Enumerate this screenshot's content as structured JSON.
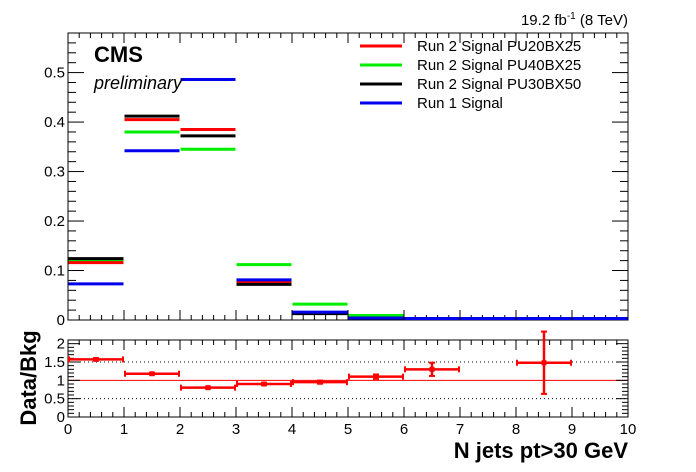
{
  "header": {
    "cms_label": "CMS",
    "prelim_label": "preliminary",
    "lumi_value": "19.2 fb",
    "lumi_exp": "-1",
    "lumi_energy": " (8 TeV)"
  },
  "chart_data": [
    {
      "type": "step-histogram",
      "title": "",
      "xlabel": "N jets pt>30 GeV",
      "ylabel": "",
      "xlim": [
        0,
        10
      ],
      "ylim": [
        0,
        0.58
      ],
      "bin_edges": [
        0,
        1,
        2,
        3,
        4,
        5,
        6,
        7,
        8,
        9,
        10
      ],
      "x_ticks": [
        0,
        1,
        2,
        3,
        4,
        5,
        6,
        7,
        8,
        9,
        10
      ],
      "y_ticks": [
        0,
        0.1,
        0.2,
        0.3,
        0.4,
        0.5
      ],
      "y_tick_labels": [
        "0",
        "0.1",
        "0.2",
        "0.3",
        "0.4",
        "0.5"
      ],
      "legend_position": "top-right",
      "series": [
        {
          "name": "Run 2 Signal PU20BX25",
          "color": "#ff0000",
          "values": [
            0.116,
            0.405,
            0.385,
            0.076,
            0.014,
            0.004,
            0.001,
            0.0,
            0.0,
            0.0
          ]
        },
        {
          "name": "Run 2 Signal PU40BX25",
          "color": "#00ee00",
          "values": [
            0.12,
            0.38,
            0.345,
            0.112,
            0.032,
            0.009,
            0.001,
            0.0,
            0.0,
            0.0
          ]
        },
        {
          "name": "Run 2 Signal PU30BX50",
          "color": "#000000",
          "values": [
            0.124,
            0.412,
            0.372,
            0.072,
            0.013,
            0.003,
            0.001,
            0.0,
            0.0,
            0.0
          ]
        },
        {
          "name": "Run 1 Signal",
          "color": "#0000ee",
          "values": [
            0.073,
            0.342,
            0.486,
            0.081,
            0.016,
            0.004,
            0.0,
            0.0,
            0.0,
            0.0
          ]
        }
      ]
    },
    {
      "type": "ratio-errorbar",
      "title": "",
      "xlabel": "N jets pt>30 GeV",
      "ylabel": "Data/Bkg",
      "xlim": [
        0,
        10
      ],
      "ylim": [
        0,
        2.1
      ],
      "x_ticks": [
        0,
        1,
        2,
        3,
        4,
        5,
        6,
        7,
        8,
        9,
        10
      ],
      "x_tick_labels": [
        "0",
        "1",
        "2",
        "3",
        "4",
        "5",
        "6",
        "7",
        "8",
        "9",
        "10"
      ],
      "y_ticks": [
        0,
        0.5,
        1,
        1.5,
        2
      ],
      "y_tick_labels": [
        "0",
        "0.5",
        "1",
        "1.5",
        "2"
      ],
      "reference_line": 1,
      "dotted_lines": [
        0.5,
        1.5
      ],
      "color": "#ff0000",
      "points": [
        {
          "x": 0.5,
          "x_low": 0,
          "x_high": 1,
          "y": 1.57,
          "err": 0.03
        },
        {
          "x": 1.5,
          "x_low": 1,
          "x_high": 2,
          "y": 1.18,
          "err": 0.02
        },
        {
          "x": 2.5,
          "x_low": 2,
          "x_high": 3,
          "y": 0.8,
          "err": 0.02
        },
        {
          "x": 3.5,
          "x_low": 3,
          "x_high": 4,
          "y": 0.9,
          "err": 0.03
        },
        {
          "x": 4.5,
          "x_low": 4,
          "x_high": 5,
          "y": 0.95,
          "err": 0.04
        },
        {
          "x": 5.5,
          "x_low": 5,
          "x_high": 6,
          "y": 1.1,
          "err": 0.06
        },
        {
          "x": 6.5,
          "x_low": 6,
          "x_high": 7,
          "y": 1.3,
          "err": 0.18
        },
        {
          "x": 8.5,
          "x_low": 8,
          "x_high": 9,
          "y": 1.48,
          "err": 0.85
        }
      ]
    }
  ]
}
